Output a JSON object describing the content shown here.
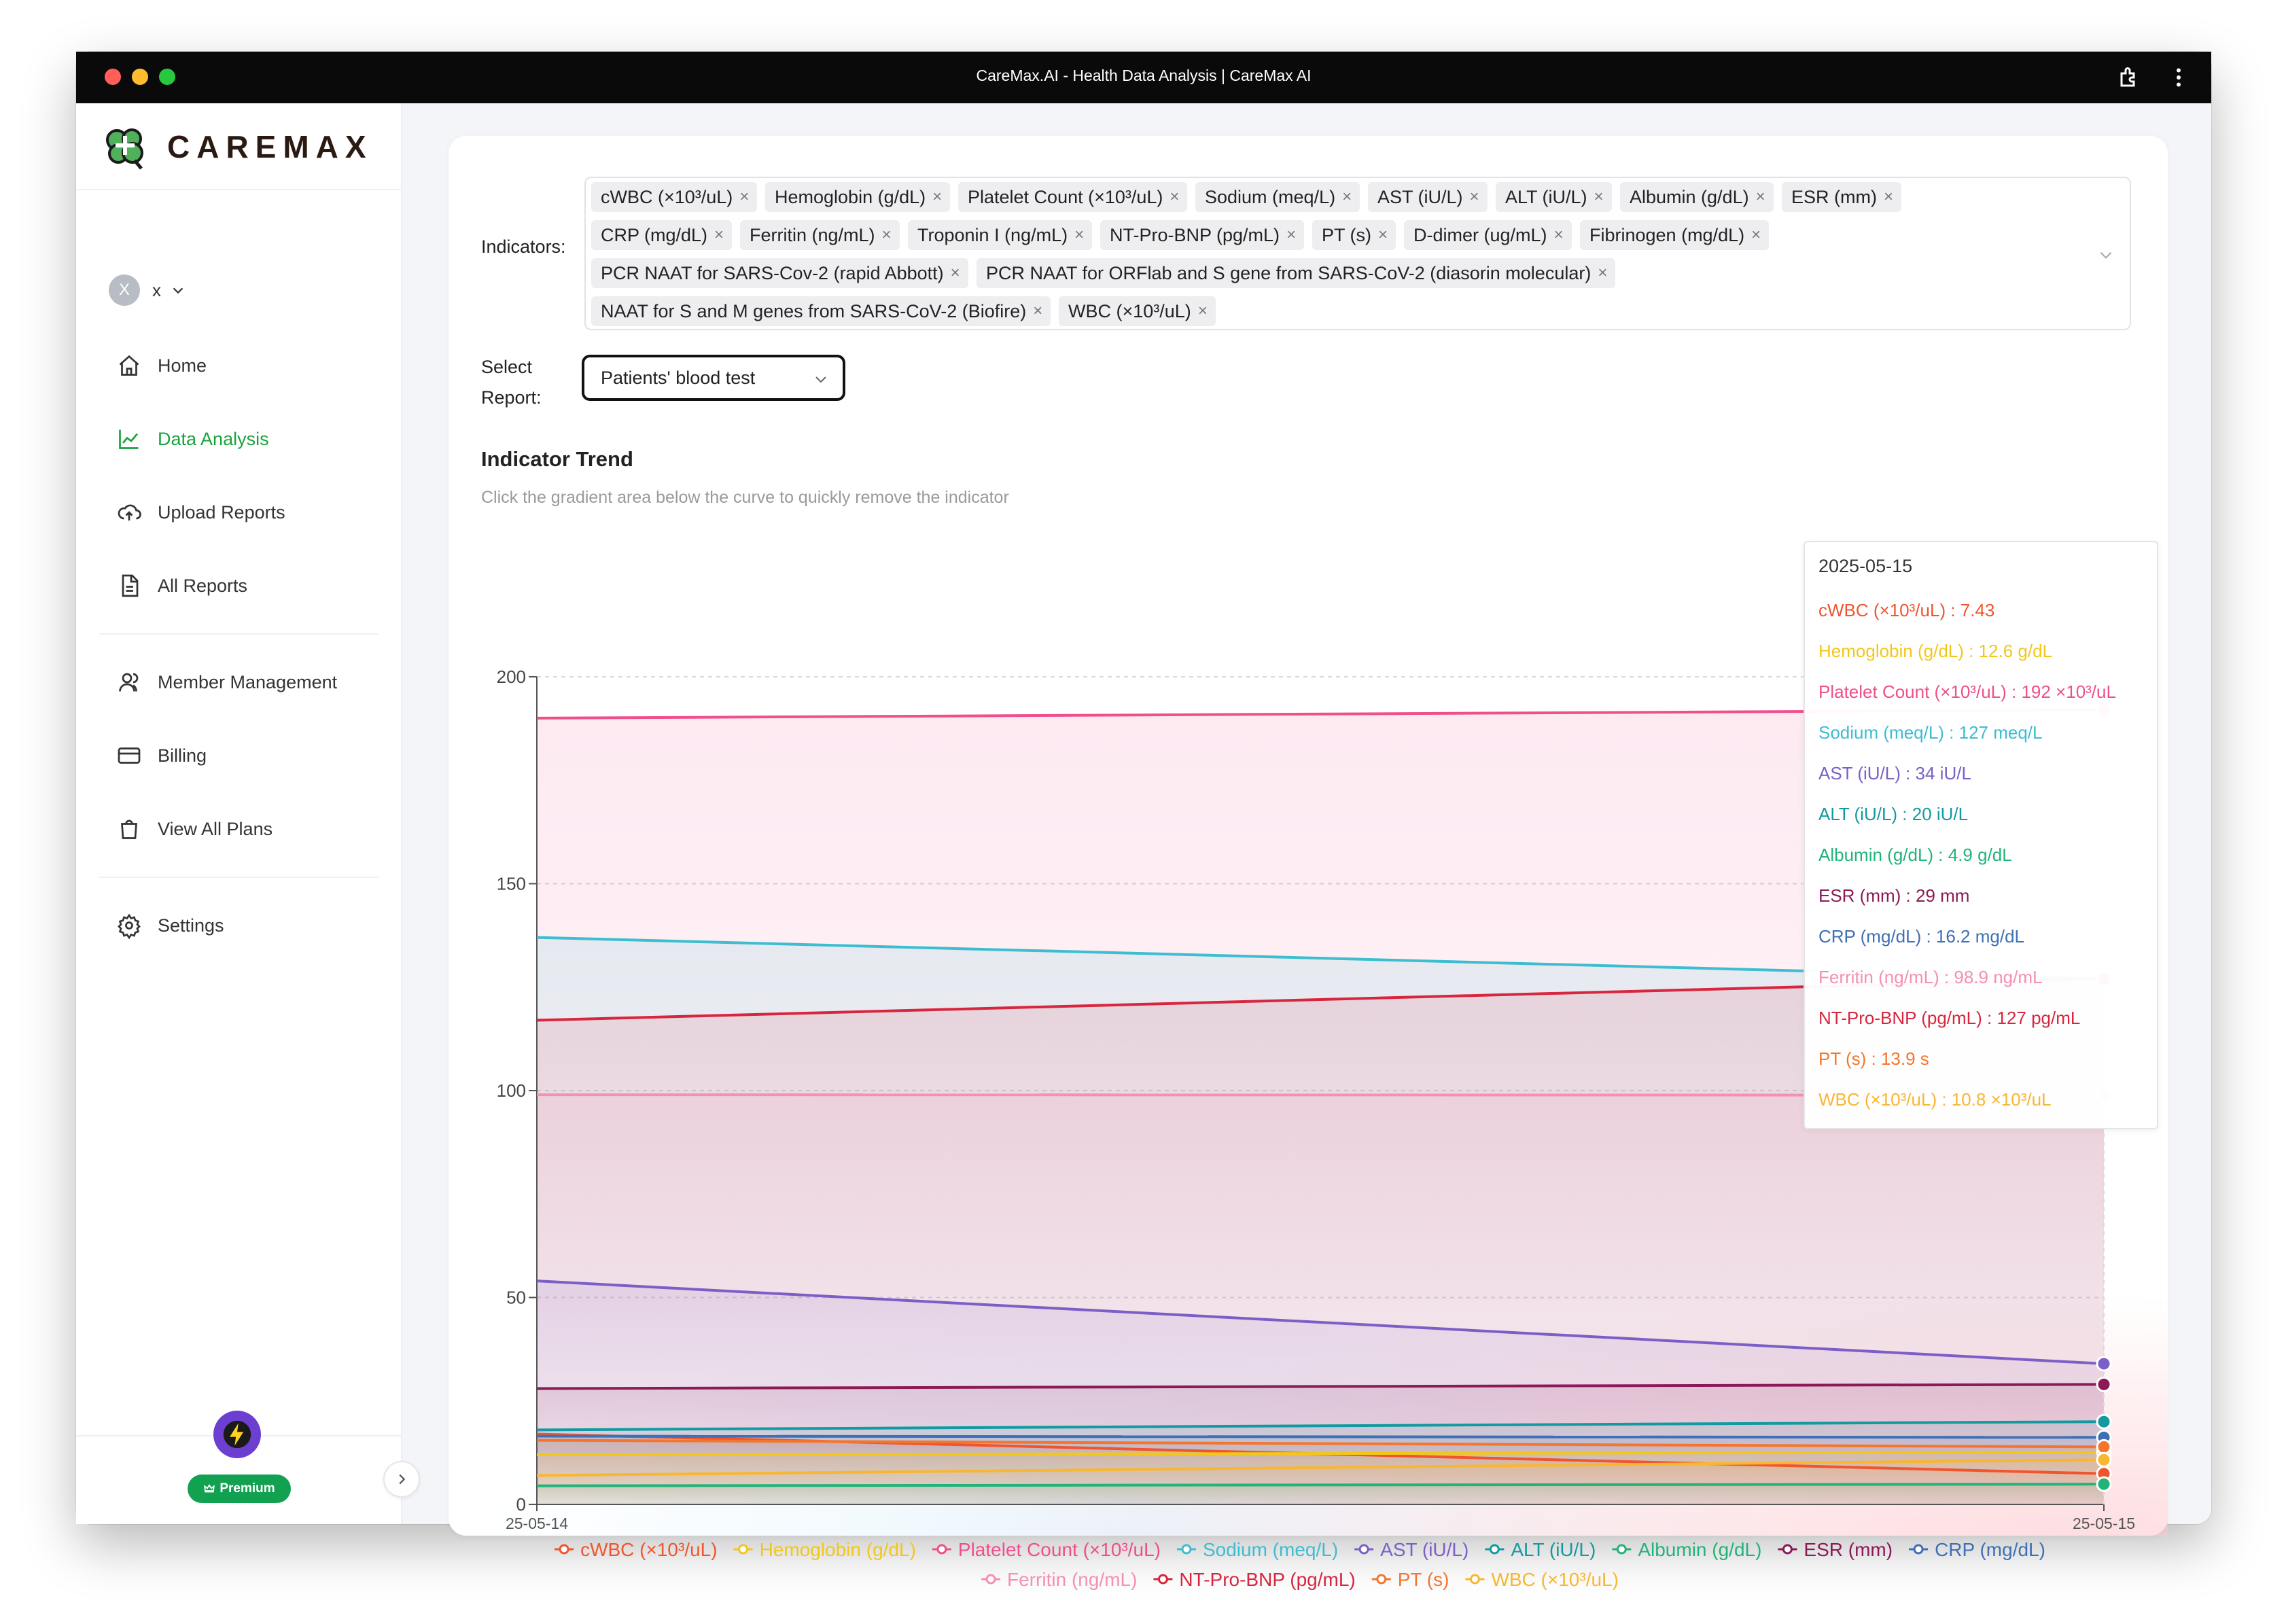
{
  "window": {
    "title": "CareMax.AI - Health Data Analysis | CareMax AI"
  },
  "brand": {
    "name": "CAREMAX"
  },
  "user": {
    "initial": "X",
    "name": "x"
  },
  "nav": [
    {
      "label": "Home",
      "icon": "home-icon",
      "active": false
    },
    {
      "label": "Data Analysis",
      "icon": "chart-line-icon",
      "active": true
    },
    {
      "label": "Upload Reports",
      "icon": "cloud-upload-icon",
      "active": false
    },
    {
      "label": "All Reports",
      "icon": "document-icon",
      "active": false
    },
    {
      "label": "Member Management",
      "icon": "members-icon",
      "active": false
    },
    {
      "label": "Billing",
      "icon": "credit-card-icon",
      "active": false
    },
    {
      "label": "View All Plans",
      "icon": "shopping-bag-icon",
      "active": false
    },
    {
      "label": "Settings",
      "icon": "gear-icon",
      "active": false
    }
  ],
  "plan": {
    "badge": "Premium"
  },
  "filters": {
    "indicators_label": "Indicators:",
    "indicators": [
      "cWBC (×10³/uL)",
      "Hemoglobin (g/dL)",
      "Platelet Count (×10³/uL)",
      "Sodium (meq/L)",
      "AST (iU/L)",
      "ALT (iU/L)",
      "Albumin (g/dL)",
      "ESR (mm)",
      "CRP (mg/dL)",
      "Ferritin (ng/mL)",
      "Troponin I (ng/mL)",
      "NT-Pro-BNP (pg/mL)",
      "PT (s)",
      "D-dimer (ug/mL)",
      "Fibrinogen (mg/dL)",
      "PCR NAAT for SARS-Cov-2 (rapid Abbott)",
      "PCR NAAT for ORFlab and S gene from SARS-CoV-2 (diasorin molecular)",
      "NAAT for S and M genes from SARS-CoV-2 (Biofire)",
      "WBC (×10³/uL)"
    ],
    "report_label_line1": "Select",
    "report_label_line2": "Report:",
    "report_value": "Patients' blood test"
  },
  "trend": {
    "title": "Indicator Trend",
    "subtitle": "Click the gradient area below the curve to quickly remove the indicator"
  },
  "chart_data": {
    "type": "line",
    "x": [
      "25-05-14",
      "25-05-15"
    ],
    "ylim": [
      0,
      200
    ],
    "yticks": [
      0,
      50,
      100,
      150,
      200
    ],
    "grid": true,
    "legend_position": "bottom",
    "series": [
      {
        "name": "cWBC (×10³/uL)",
        "color": "#f0552f",
        "values": [
          17.0,
          7.43
        ],
        "unit": ""
      },
      {
        "name": "Hemoglobin (g/dL)",
        "color": "#f2c71b",
        "values": [
          12.0,
          12.6
        ],
        "unit": "g/dL"
      },
      {
        "name": "Platelet Count (×10³/uL)",
        "color": "#ef4f8b",
        "values": [
          190,
          192
        ],
        "unit": "×10³/uL"
      },
      {
        "name": "Sodium (meq/L)",
        "color": "#3dbdd0",
        "values": [
          137,
          127
        ],
        "unit": "meq/L"
      },
      {
        "name": "AST (iU/L)",
        "color": "#7b5fc7",
        "values": [
          54,
          34
        ],
        "unit": "iU/L"
      },
      {
        "name": "ALT (iU/L)",
        "color": "#139aa0",
        "values": [
          18,
          20
        ],
        "unit": "iU/L"
      },
      {
        "name": "Albumin (g/dL)",
        "color": "#22b37a",
        "values": [
          4.5,
          4.9
        ],
        "unit": "g/dL"
      },
      {
        "name": "ESR (mm)",
        "color": "#8b1a57",
        "values": [
          28,
          29
        ],
        "unit": "mm"
      },
      {
        "name": "CRP (mg/dL)",
        "color": "#3f6fb5",
        "values": [
          16.5,
          16.2
        ],
        "unit": "mg/dL"
      },
      {
        "name": "Ferritin (ng/mL)",
        "color": "#f58fb6",
        "values": [
          99,
          98.9
        ],
        "unit": "ng/mL"
      },
      {
        "name": "NT-Pro-BNP (pg/mL)",
        "color": "#d7263d",
        "values": [
          117,
          127
        ],
        "unit": "pg/mL"
      },
      {
        "name": "PT (s)",
        "color": "#f4762e",
        "values": [
          15.5,
          13.9
        ],
        "unit": "s"
      },
      {
        "name": "WBC (×10³/uL)",
        "color": "#f7b731",
        "values": [
          7.0,
          10.8
        ],
        "unit": "×10³/uL"
      }
    ]
  },
  "tooltip": {
    "date": "2025-05-15",
    "rows": [
      {
        "text": "cWBC (×10³/uL) : 7.43",
        "color": "#f0552f"
      },
      {
        "text": "Hemoglobin (g/dL) : 12.6 g/dL",
        "color": "#f2c71b"
      },
      {
        "text": "Platelet Count (×10³/uL) : 192 ×10³/uL",
        "color": "#ef4f8b"
      },
      {
        "text": "Sodium (meq/L) : 127 meq/L",
        "color": "#3dbdd0"
      },
      {
        "text": "AST (iU/L) : 34 iU/L",
        "color": "#7b5fc7"
      },
      {
        "text": "ALT (iU/L) : 20 iU/L",
        "color": "#139aa0"
      },
      {
        "text": "Albumin (g/dL) : 4.9 g/dL",
        "color": "#22b37a"
      },
      {
        "text": "ESR (mm) : 29 mm",
        "color": "#8b1a57"
      },
      {
        "text": "CRP (mg/dL) : 16.2 mg/dL",
        "color": "#3f6fb5"
      },
      {
        "text": "Ferritin (ng/mL) : 98.9 ng/mL",
        "color": "#f58fb6"
      },
      {
        "text": "NT-Pro-BNP (pg/mL) : 127 pg/mL",
        "color": "#d7263d"
      },
      {
        "text": "PT (s) : 13.9 s",
        "color": "#f4762e"
      },
      {
        "text": "WBC (×10³/uL) : 10.8 ×10³/uL",
        "color": "#f7b731"
      }
    ]
  }
}
